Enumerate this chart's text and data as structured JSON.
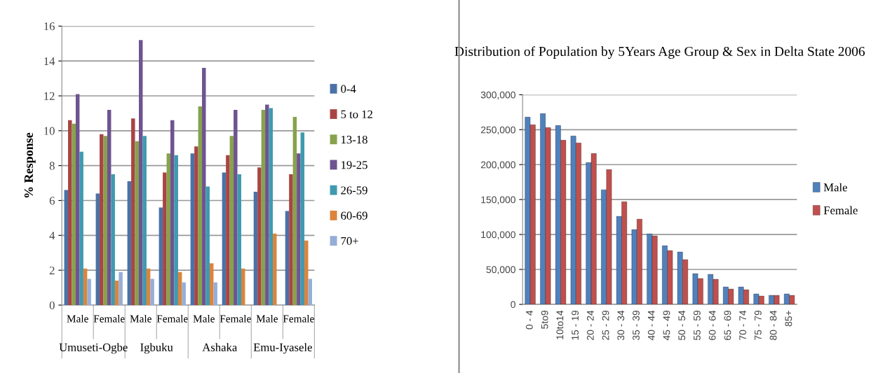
{
  "chart_data": [
    {
      "type": "bar",
      "ylabel": "% Response",
      "categories": [
        "Male",
        "Female",
        "Male",
        "Female",
        "Male",
        "Female",
        "Male",
        "Female"
      ],
      "annotations": [
        "Umuseti-Ogbe",
        "Igbuku",
        "Ashaka",
        "Emu-Iyasele"
      ],
      "series": [
        {
          "name": "0-4",
          "color": "#4a72a8",
          "values": [
            6.6,
            6.4,
            7.1,
            5.6,
            8.7,
            7.6,
            6.5,
            5.4
          ]
        },
        {
          "name": "5 to 12",
          "color": "#a84543",
          "values": [
            10.6,
            9.8,
            10.7,
            7.6,
            9.1,
            8.6,
            7.9,
            7.5
          ]
        },
        {
          "name": "13-18",
          "color": "#87a24c",
          "values": [
            10.4,
            9.7,
            9.4,
            8.7,
            11.4,
            9.7,
            11.2,
            10.8
          ]
        },
        {
          "name": "19-25",
          "color": "#6e5490",
          "values": [
            12.1,
            11.2,
            15.2,
            10.6,
            13.6,
            11.2,
            11.5,
            8.7
          ]
        },
        {
          "name": "26-59",
          "color": "#3f9aaf",
          "values": [
            8.8,
            7.5,
            9.7,
            8.6,
            6.8,
            7.5,
            11.3,
            9.9
          ]
        },
        {
          "name": "60-69",
          "color": "#db843d",
          "values": [
            2.1,
            1.4,
            2.1,
            1.9,
            2.4,
            2.1,
            4.1,
            3.7
          ]
        },
        {
          "name": "70+",
          "color": "#95aed6",
          "values": [
            1.5,
            1.9,
            1.5,
            1.3,
            1.3,
            null,
            null,
            1.5
          ]
        }
      ],
      "ylim": [
        0,
        16
      ],
      "yticks": [
        0,
        2,
        4,
        6,
        8,
        10,
        12,
        14,
        16
      ],
      "grid": "y",
      "legend": "right"
    },
    {
      "type": "bar",
      "title": "Distribution of Population by 5Years Age Group & Sex in Delta State 2006",
      "categories": [
        "0 - 4",
        "5to9",
        "10to14",
        "15 - 19",
        "20 - 24",
        "25 - 29",
        "30 - 34",
        "35 - 39",
        "40 - 44",
        "45 - 49",
        "50 - 54",
        "55 - 59",
        "60 - 64",
        "65 - 69",
        "70 - 74",
        "75 - 79",
        "80 - 84",
        "85+"
      ],
      "series": [
        {
          "name": "Male",
          "color": "#4f81bd",
          "values": [
            268000,
            273000,
            256000,
            241000,
            203000,
            164000,
            126000,
            107000,
            101000,
            84000,
            75000,
            44000,
            43000,
            25000,
            25000,
            15000,
            13000,
            15000
          ]
        },
        {
          "name": "Female",
          "color": "#c0504d",
          "values": [
            257000,
            253000,
            235000,
            231000,
            216000,
            193000,
            147000,
            122000,
            98000,
            77000,
            64000,
            37000,
            36000,
            22000,
            21000,
            12000,
            13000,
            13000
          ]
        }
      ],
      "ylim": [
        0,
        300000
      ],
      "yticks": [
        {
          "value": 0,
          "label": "0"
        },
        {
          "value": 50000,
          "label": "50,000"
        },
        {
          "value": 100000,
          "label": "100,000"
        },
        {
          "value": 150000,
          "label": "150,000"
        },
        {
          "value": 200000,
          "label": "200,000"
        },
        {
          "value": 250000,
          "label": "250,000"
        },
        {
          "value": 300000,
          "label": "300,000"
        }
      ],
      "grid": "y",
      "legend": "right"
    }
  ]
}
